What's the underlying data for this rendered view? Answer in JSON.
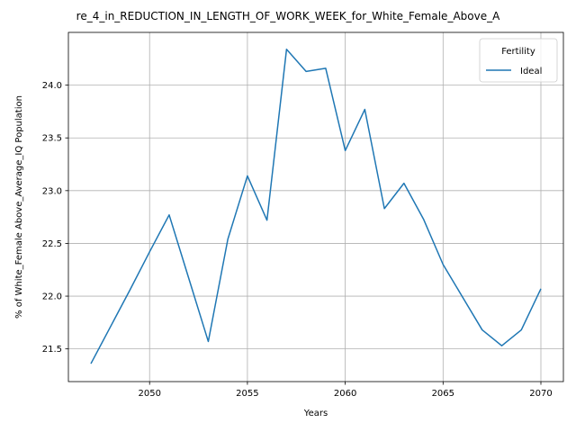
{
  "chart_data": {
    "type": "line",
    "title": "re_4_in_REDUCTION_IN_LENGTH_OF_WORK_WEEK_for_White_Female_Above_A",
    "xlabel": "Years",
    "ylabel": "% of White_Female Above_Average_IQ Population",
    "xlim": [
      2045.85,
      2071.15
    ],
    "ylim": [
      21.19,
      24.5
    ],
    "x_ticks": [
      2050,
      2055,
      2060,
      2065,
      2070
    ],
    "y_ticks": [
      21.5,
      22.0,
      22.5,
      23.0,
      23.5,
      24.0
    ],
    "x_tick_labels": [
      "2050",
      "2055",
      "2060",
      "2065",
      "2070"
    ],
    "y_tick_labels": [
      "21.5",
      "22.0",
      "22.5",
      "23.0",
      "23.5",
      "24.0"
    ],
    "grid": true,
    "legend": {
      "title": "Fertility",
      "placement": "top-right"
    },
    "series": [
      {
        "name": "Ideal",
        "color": "#1f77b4",
        "x": [
          2047,
          2048,
          2049,
          2050,
          2051,
          2052,
          2053,
          2054,
          2055,
          2056,
          2057,
          2058,
          2059,
          2060,
          2061,
          2062,
          2063,
          2064,
          2065,
          2066,
          2067,
          2068,
          2069,
          2070
        ],
        "y": [
          21.36,
          21.71,
          22.06,
          22.42,
          22.77,
          22.17,
          21.57,
          22.54,
          23.14,
          22.72,
          24.34,
          24.13,
          24.16,
          23.38,
          23.77,
          22.83,
          23.07,
          22.73,
          22.3,
          21.99,
          21.68,
          21.53,
          21.68,
          22.07
        ]
      }
    ]
  }
}
